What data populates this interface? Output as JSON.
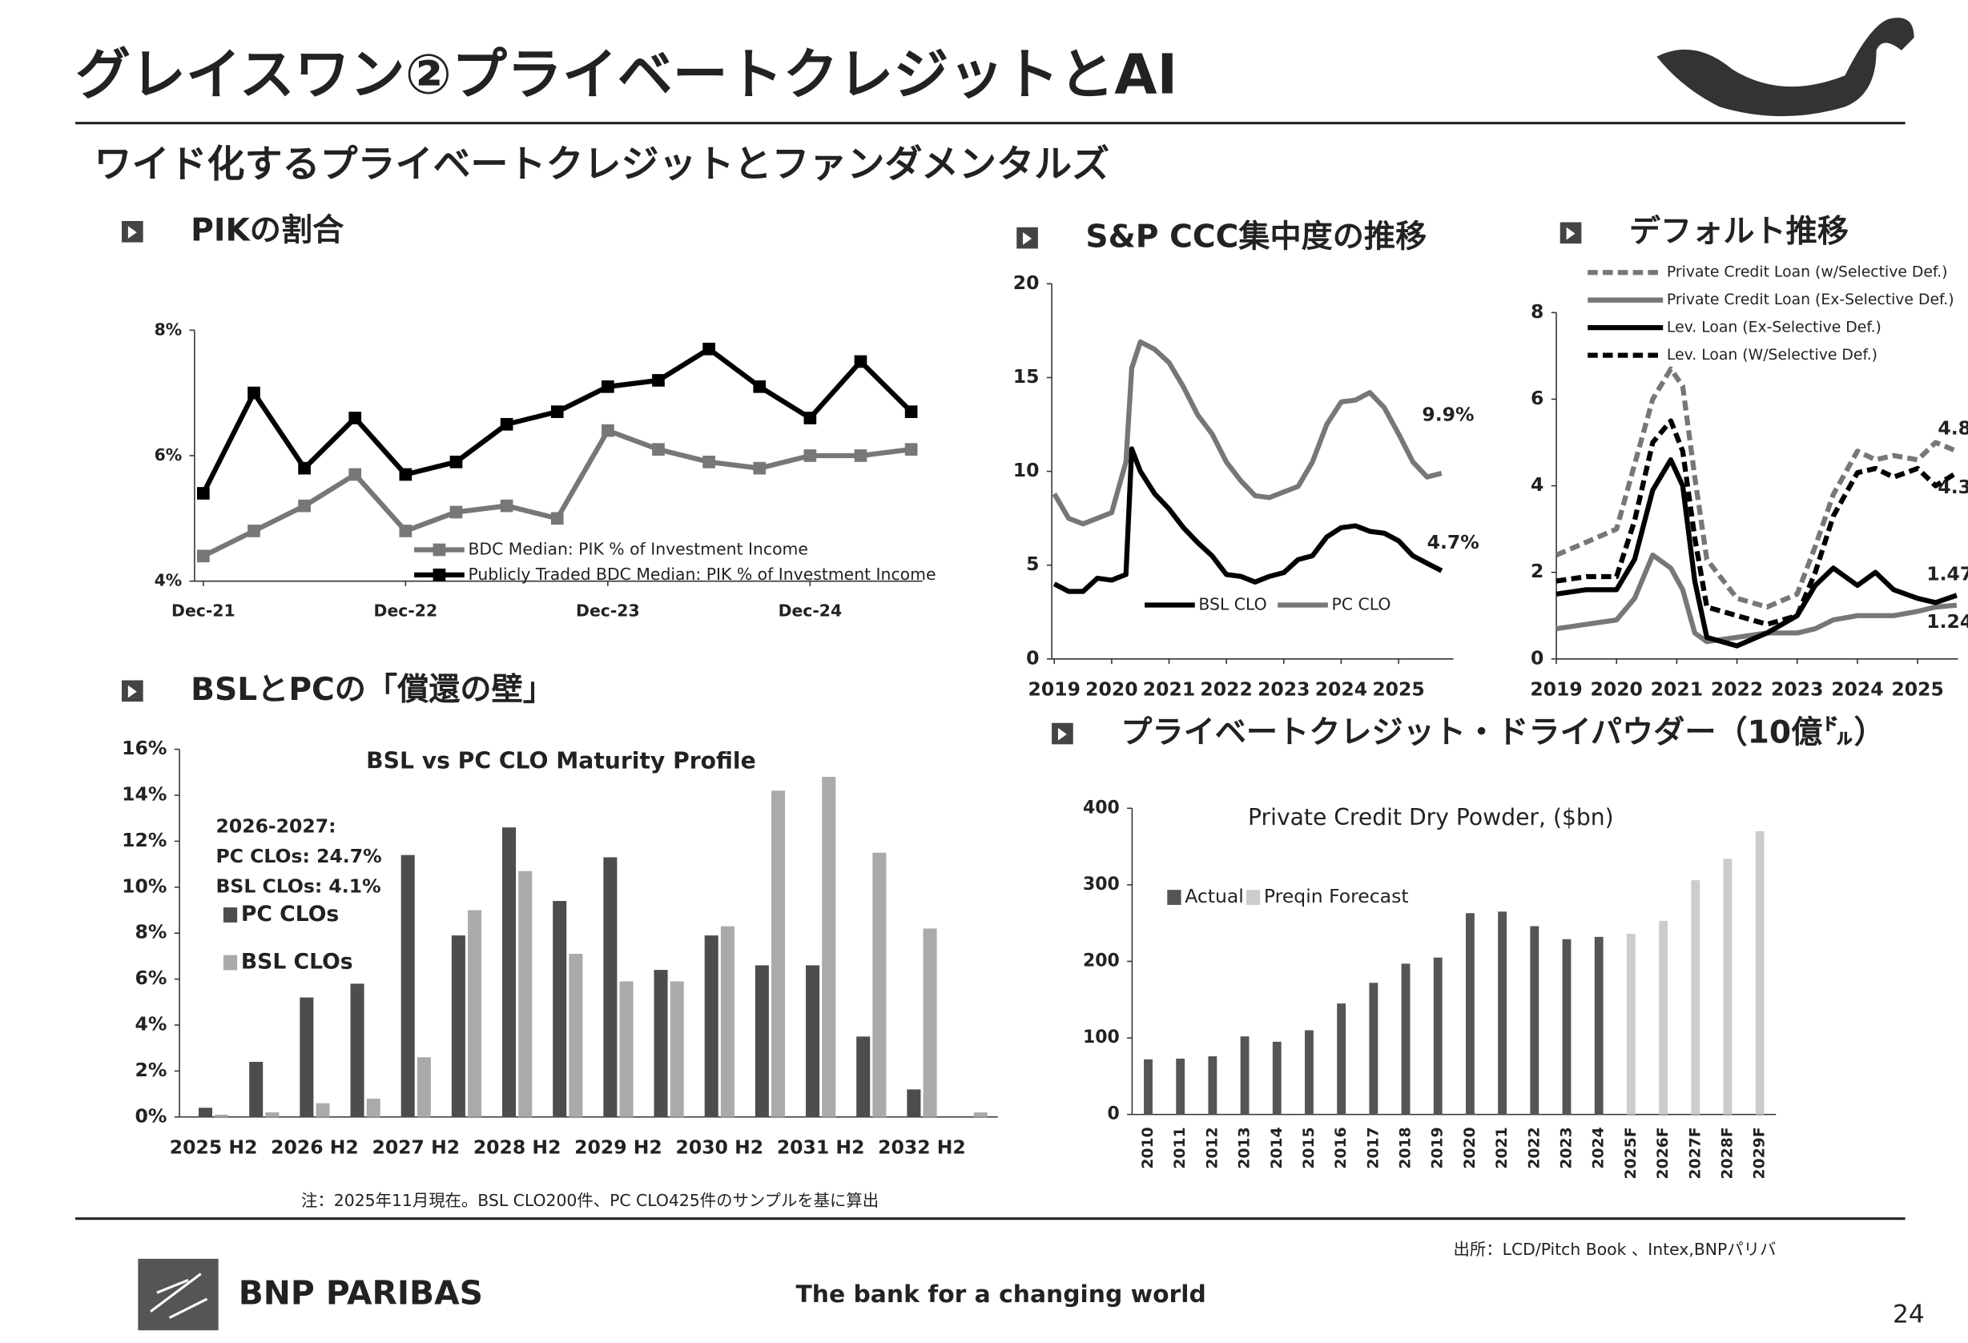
{
  "slide": {
    "title": "グレイスワン②プライベートクレジットとAI",
    "subtitle": "ワイド化するプライベートクレジットとファンダメンタルズ",
    "sections": [
      "PIKの割合",
      "S&P CCC集中度の推移",
      "デフォルト推移",
      "BSLとPCの「償還の壁」",
      "プライベートクレジット・ドライパウダー（10億㌦）"
    ],
    "note": "注：2025年11月現在。BSL CLO200件、PC CLO425件のサンプルを基に算出",
    "source": "出所：LCD/Pitch Book 、Intex,BNPパリバ",
    "logo": "BNP PARIBAS",
    "tagline": "The bank for a changing world",
    "page": "24"
  },
  "chart_data": [
    {
      "type": "line",
      "categories": [
        "Dec-21",
        null,
        null,
        null,
        "Dec-22",
        null,
        null,
        null,
        "Dec-23",
        null,
        null,
        null,
        "Dec-24",
        null,
        null
      ],
      "ylim": [
        4,
        8
      ],
      "yticks": [
        {
          "value": 4,
          "label": "4%"
        },
        {
          "value": 6,
          "label": "6%"
        },
        {
          "value": 8,
          "label": "8%"
        }
      ],
      "markers": "square",
      "series": [
        {
          "name": "BDC Median: PIK % of Investment Income",
          "color": "#777777",
          "values": [
            4.4,
            4.8,
            5.2,
            5.7,
            4.8,
            5.1,
            5.2,
            5.0,
            6.4,
            6.1,
            5.9,
            5.8,
            6.0,
            6.0,
            6.1
          ]
        },
        {
          "name": "Publicly Traded BDC Median: PIK % of Investment Income",
          "color": "#000000",
          "values": [
            5.4,
            7.0,
            5.8,
            6.6,
            5.7,
            5.9,
            6.5,
            6.7,
            7.1,
            7.2,
            7.7,
            7.1,
            6.6,
            7.5,
            6.7
          ]
        }
      ]
    },
    {
      "type": "line",
      "x": [
        2019,
        2019.25,
        2019.5,
        2019.75,
        2020,
        2020.25,
        2020.35,
        2020.5,
        2020.75,
        2021,
        2021.25,
        2021.5,
        2021.75,
        2022,
        2022.25,
        2022.5,
        2022.75,
        2023,
        2023.25,
        2023.5,
        2023.75,
        2024,
        2024.25,
        2024.5,
        2024.75,
        2025,
        2025.25,
        2025.5,
        2025.75
      ],
      "xlim": [
        2019,
        2026
      ],
      "xticks": [
        2019,
        2020,
        2021,
        2022,
        2023,
        2024,
        2025
      ],
      "ylim": [
        0,
        20
      ],
      "yticks": [
        0,
        5,
        10,
        15,
        20
      ],
      "series": [
        {
          "name": "BSL CLO",
          "color": "#000000",
          "values": [
            4.0,
            3.6,
            3.6,
            4.3,
            4.2,
            4.5,
            11.2,
            10.0,
            8.8,
            8.0,
            7.0,
            6.2,
            5.5,
            4.5,
            4.4,
            4.1,
            4.4,
            4.6,
            5.3,
            5.5,
            6.5,
            7.0,
            7.1,
            6.8,
            6.7,
            6.3,
            5.5,
            5.1,
            4.7
          ]
        },
        {
          "name": "PC CLO",
          "color": "#777777",
          "values": [
            8.8,
            7.5,
            7.2,
            7.5,
            7.8,
            10.5,
            15.5,
            16.9,
            16.5,
            15.8,
            14.5,
            13.0,
            12.0,
            10.5,
            9.5,
            8.7,
            8.6,
            8.9,
            9.2,
            10.5,
            12.5,
            13.7,
            13.8,
            14.2,
            13.4,
            12.0,
            10.5,
            9.7,
            9.9
          ]
        }
      ],
      "annotations": [
        "9.9%",
        "4.7%"
      ]
    },
    {
      "type": "line",
      "x": [
        2019,
        2019.5,
        2020,
        2020.3,
        2020.6,
        2020.9,
        2021.1,
        2021.3,
        2021.5,
        2022,
        2022.5,
        2023,
        2023.3,
        2023.6,
        2024,
        2024.3,
        2024.6,
        2025,
        2025.3,
        2025.65
      ],
      "xlim": [
        2019,
        2025.67
      ],
      "xticks": [
        2019,
        2020,
        2021,
        2022,
        2023,
        2024,
        2025
      ],
      "ylim": [
        0,
        8
      ],
      "yticks": [
        0,
        2,
        4,
        6,
        8
      ],
      "series": [
        {
          "name": "Private Credit Loan (w/Selective Def.)",
          "color": "#777777",
          "line_style": "dashed",
          "values": [
            2.4,
            2.7,
            3.0,
            4.5,
            6.0,
            6.7,
            6.3,
            4.2,
            2.3,
            1.4,
            1.2,
            1.5,
            2.6,
            3.8,
            4.8,
            4.6,
            4.7,
            4.6,
            5.0,
            4.8
          ]
        },
        {
          "name": "Private Credit Loan (Ex-Selective Def.)",
          "color": "#777777",
          "values": [
            0.7,
            0.8,
            0.9,
            1.4,
            2.4,
            2.1,
            1.6,
            0.6,
            0.4,
            0.5,
            0.6,
            0.6,
            0.7,
            0.9,
            1.0,
            1.0,
            1.0,
            1.1,
            1.2,
            1.24
          ]
        },
        {
          "name": "Lev. Loan (Ex-Selective Def.)",
          "color": "#000000",
          "values": [
            1.5,
            1.6,
            1.6,
            2.3,
            3.9,
            4.6,
            4.0,
            1.8,
            0.5,
            0.3,
            0.6,
            1.0,
            1.7,
            2.1,
            1.7,
            2.0,
            1.6,
            1.4,
            1.3,
            1.47
          ]
        },
        {
          "name": "Lev. Loan (W/Selective Def.)",
          "color": "#000000",
          "line_style": "dashed",
          "values": [
            1.8,
            1.9,
            1.9,
            3.2,
            5.0,
            5.5,
            4.8,
            2.8,
            1.2,
            1.0,
            0.8,
            1.0,
            2.0,
            3.3,
            4.3,
            4.4,
            4.2,
            4.4,
            4.0,
            4.3
          ]
        }
      ],
      "annotations": [
        "4.8",
        "4.3",
        "1.47",
        "1.24"
      ]
    },
    {
      "type": "bar",
      "title": "BSL vs PC CLO Maturity Profile",
      "categories": [
        "2025 H2",
        null,
        "2026 H2",
        null,
        "2027 H2",
        null,
        "2028 H2",
        null,
        "2029 H2",
        null,
        "2030 H2",
        null,
        "2031 H2",
        null,
        "2032 H2",
        null
      ],
      "ylim": [
        0,
        16
      ],
      "yticks": [
        {
          "value": 0,
          "label": "0%"
        },
        {
          "value": 2,
          "label": "2%"
        },
        {
          "value": 4,
          "label": "4%"
        },
        {
          "value": 6,
          "label": "6%"
        },
        {
          "value": 8,
          "label": "8%"
        },
        {
          "value": 10,
          "label": "10%"
        },
        {
          "value": 12,
          "label": "12%"
        },
        {
          "value": 14,
          "label": "14%"
        },
        {
          "value": 16,
          "label": "16%"
        }
      ],
      "series": [
        {
          "name": "PC CLOs",
          "color": "#4d4d4d",
          "values": [
            0.4,
            2.4,
            5.2,
            5.8,
            11.4,
            7.9,
            12.6,
            9.4,
            11.3,
            6.4,
            7.9,
            6.6,
            6.6,
            3.5,
            1.2,
            0
          ]
        },
        {
          "name": "BSL CLOs",
          "color": "#aaaaaa",
          "values": [
            0.1,
            0.2,
            0.6,
            0.8,
            2.6,
            9.0,
            10.7,
            7.1,
            5.9,
            5.9,
            8.3,
            14.2,
            14.8,
            11.5,
            8.2,
            0.2
          ]
        }
      ],
      "annotations": [
        "2026-2027:",
        "PC CLOs: 24.7%",
        "BSL CLOs: 4.1%"
      ]
    },
    {
      "type": "bar",
      "title": "Private Credit Dry Powder, ($bn)",
      "categories": [
        "2010",
        "2011",
        "2012",
        "2013",
        "2014",
        "2015",
        "2016",
        "2017",
        "2018",
        "2019",
        "2020",
        "2021",
        "2022",
        "2023",
        "2024",
        "2025F",
        "2026F",
        "2027F",
        "2028F",
        "2029F"
      ],
      "ylim": [
        0,
        400
      ],
      "yticks": [
        0,
        100,
        200,
        300,
        400
      ],
      "series": [
        {
          "name": "Actual",
          "color": "#555555",
          "values": [
            72,
            73,
            76,
            102,
            95,
            110,
            145,
            172,
            197,
            205,
            263,
            265,
            246,
            229,
            232,
            null,
            null,
            null,
            null,
            null
          ]
        },
        {
          "name": "Preqin Forecast",
          "color": "#cccccc",
          "values": [
            null,
            null,
            null,
            null,
            null,
            null,
            null,
            null,
            null,
            null,
            null,
            null,
            null,
            null,
            null,
            236,
            253,
            306,
            334,
            370
          ]
        }
      ]
    }
  ]
}
